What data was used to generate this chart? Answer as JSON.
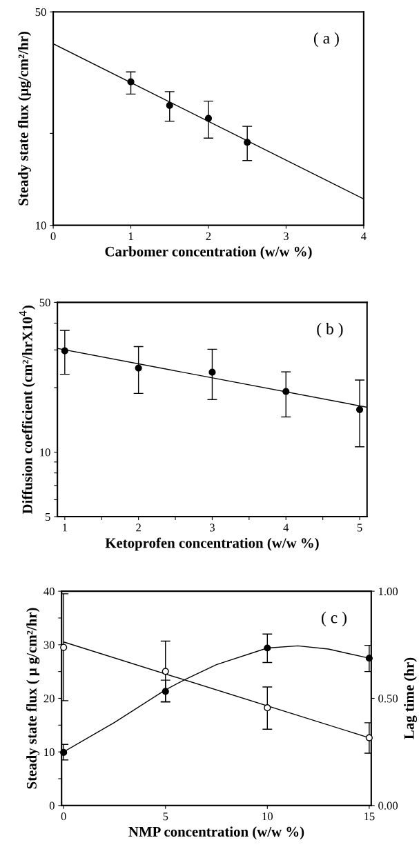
{
  "chart_data": [
    {
      "type": "scatter",
      "xlabel": "Carbomer concentration (w/w %)",
      "ylabel": "Steady state flux (μg/cm²/hr)",
      "annotations": [
        "( a )"
      ],
      "log": "y",
      "xlim": [
        0,
        4
      ],
      "xticks": [
        0,
        1,
        2,
        3,
        4
      ],
      "ylim": [
        10,
        50
      ],
      "yticks": [
        10,
        {
          "value": 20,
          "label": null
        },
        50
      ],
      "grid": false,
      "marker": "circle",
      "series": [
        {
          "color": "#000000",
          "x": [
            1,
            1.5,
            2,
            2.5
          ],
          "values": [
            29.5,
            24.7,
            22.4,
            18.7
          ],
          "errors": [
            [
              26.9,
              31.8
            ],
            [
              21.9,
              27.4
            ],
            [
              19.3,
              25.5
            ],
            [
              16.3,
              21.1
            ]
          ]
        },
        {
          "type": "line",
          "color": "#000000",
          "x": [
            0,
            4
          ],
          "values": [
            39.3,
            12.2
          ],
          "marker": "none"
        }
      ]
    },
    {
      "type": "scatter",
      "xlabel": "Ketoprofen concentration (w/w %)",
      "ylabel": "Diffusion coefficient (cm²/hrX10$^{4}$)",
      "annotations": [
        "( b )"
      ],
      "log": "y",
      "xlim": [
        0.9,
        5.1
      ],
      "xticks": [
        1,
        {
          "value": 1.5,
          "label": null
        },
        2,
        {
          "value": 2.5,
          "label": null
        },
        3,
        {
          "value": 3.5,
          "label": null
        },
        4,
        {
          "value": 4.5,
          "label": null
        },
        5
      ],
      "ylim": [
        5,
        50
      ],
      "yticks": [
        5,
        {
          "value": 6,
          "label": null
        },
        {
          "value": 7,
          "label": null
        },
        {
          "value": 8,
          "label": null
        },
        {
          "value": 9,
          "label": null
        },
        10,
        {
          "value": 20,
          "label": null
        },
        {
          "value": 30,
          "label": null
        },
        {
          "value": 40,
          "label": null
        },
        50
      ],
      "grid": false,
      "marker": "circle",
      "series": [
        {
          "color": "#000000",
          "x": [
            1,
            2,
            3,
            4,
            5
          ],
          "values": [
            29.7,
            24.7,
            23.6,
            19.2,
            15.8
          ],
          "errors": [
            [
              23.1,
              37.0
            ],
            [
              18.8,
              31.1
            ],
            [
              17.6,
              30.2
            ],
            [
              14.6,
              23.7
            ],
            [
              10.6,
              21.7
            ]
          ]
        },
        {
          "type": "line",
          "color": "#000000",
          "x": [
            0.9,
            5.1
          ],
          "values": [
            30.5,
            16.2
          ],
          "marker": "none"
        }
      ]
    },
    {
      "type": "scatter",
      "xlabel": "NMP concentration (w/w %)",
      "ylabel": "Steady state flux ( μ g/cm²/hr)",
      "y2label": "Lag time (hr)",
      "annotations": [
        "( c )"
      ],
      "xlim": [
        -0.1,
        15.1
      ],
      "xticks": [
        0,
        5,
        10,
        15
      ],
      "ylim": [
        0,
        40
      ],
      "yticks": [
        0,
        {
          "value": 5,
          "label": null
        },
        10,
        {
          "value": 15,
          "label": null
        },
        20,
        {
          "value": 25,
          "label": null
        },
        30,
        {
          "value": 35,
          "label": null
        },
        40
      ],
      "y2lim": [
        0,
        1
      ],
      "y2ticks": [
        {
          "value": 0,
          "label": "0.00"
        },
        {
          "value": 0.5,
          "label": "0.50"
        },
        {
          "value": 1,
          "label": "1.00"
        }
      ],
      "grid": false,
      "marker": "circle",
      "series": [
        {
          "color": "#000000",
          "x": [
            0,
            5,
            10,
            15
          ],
          "values": [
            9.9,
            21.3,
            29.4,
            27.5
          ],
          "errors": [
            [
              8.5,
              11.4
            ],
            [
              19.3,
              23.4
            ],
            [
              26.7,
              32.0
            ],
            [
              25.0,
              29.9
            ]
          ]
        },
        {
          "type": "line",
          "color": "#000000",
          "x": [
            0,
            2.5,
            5,
            6,
            7.5,
            10,
            11.5,
            13,
            15
          ],
          "values": [
            10.0,
            15.5,
            21.6,
            23.6,
            26.3,
            29.4,
            29.8,
            29.2,
            27.5
          ],
          "marker": "none"
        },
        {
          "axis": "y2",
          "color": "#000000",
          "x": [
            0,
            5,
            10,
            15
          ],
          "values": [
            0.738,
            0.626,
            0.456,
            0.316
          ],
          "errors": [
            [
              0.489,
              0.988
            ],
            [
              0.485,
              0.767
            ],
            [
              0.356,
              0.553
            ],
            [
              0.244,
              0.386
            ]
          ]
        },
        {
          "type": "line",
          "axis": "y2",
          "color": "#000000",
          "x": [
            0,
            15
          ],
          "values": [
            0.763,
            0.316
          ],
          "marker": "none"
        }
      ]
    }
  ]
}
